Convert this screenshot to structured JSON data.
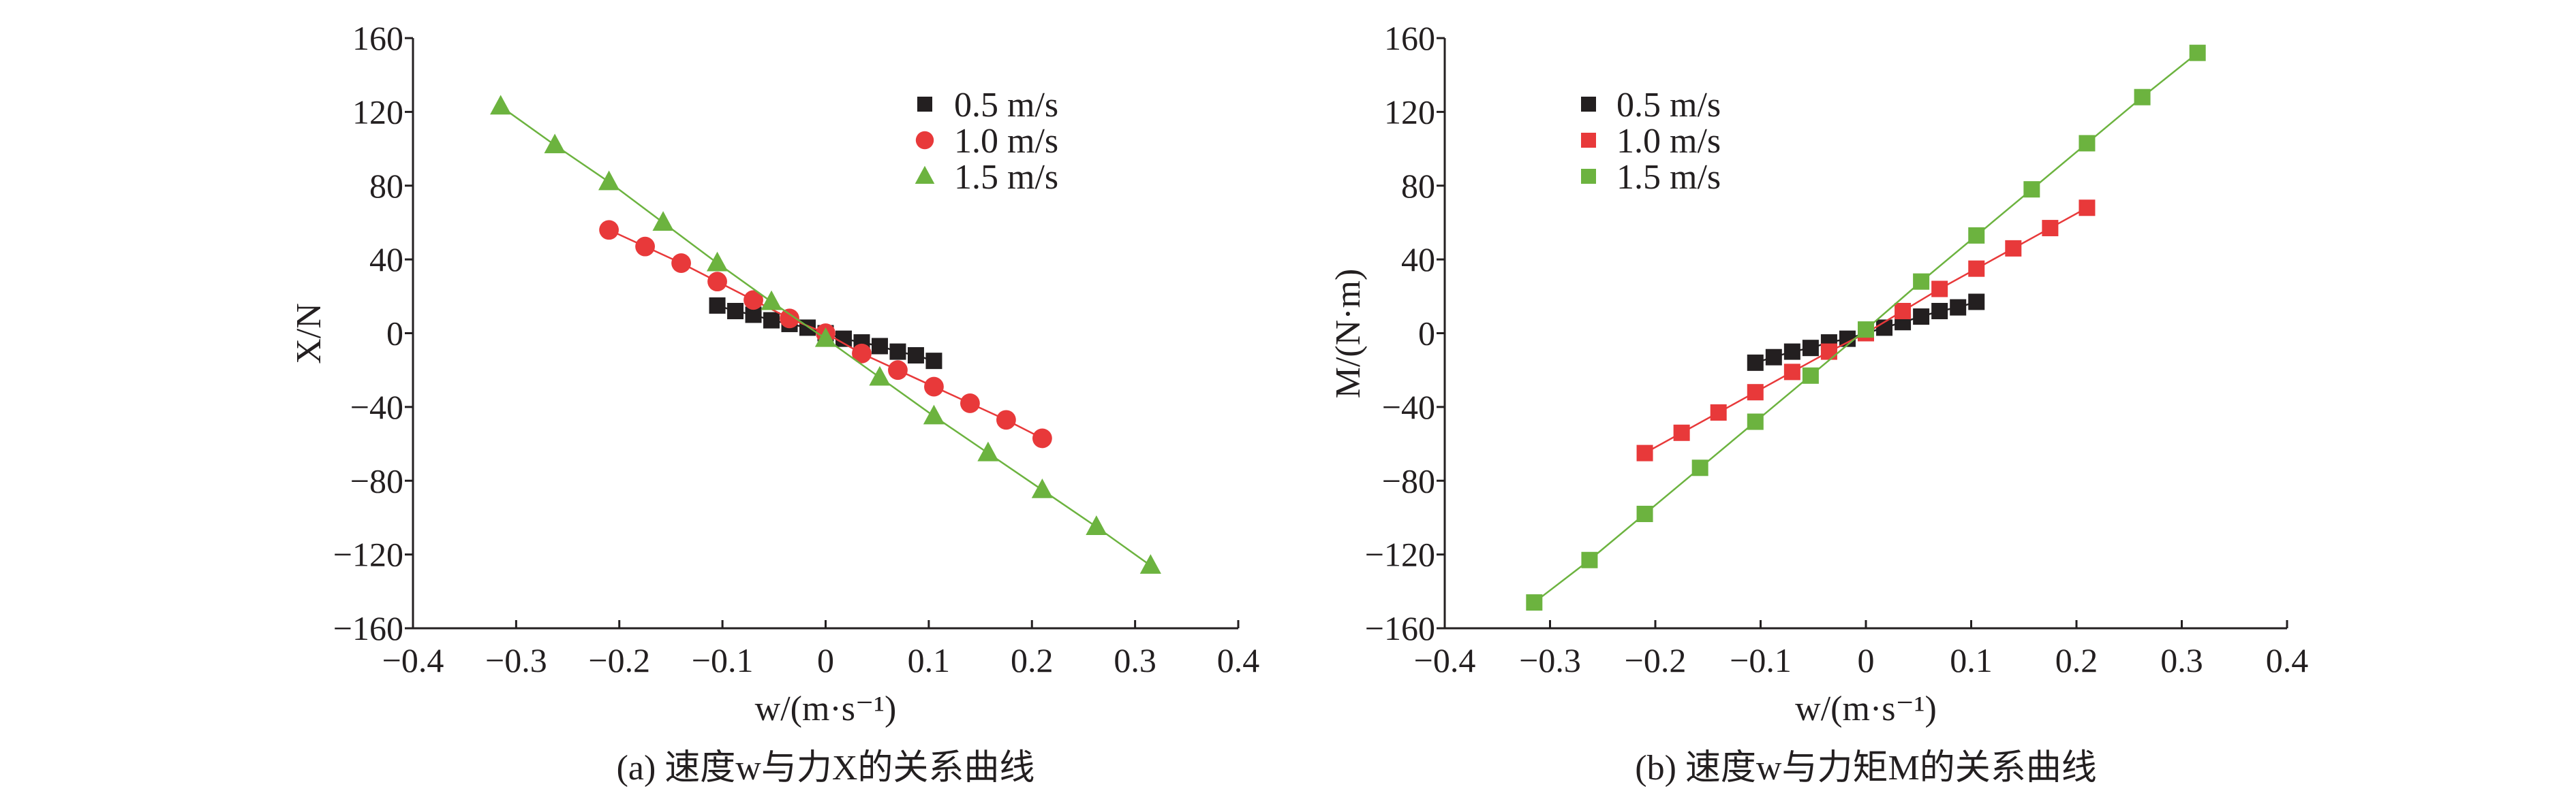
{
  "chart_data": [
    {
      "type": "line",
      "caption": "(a) 速度w与力X的关系曲线",
      "xlabel": "w/(m·s⁻¹)",
      "ylabel": "X/N",
      "xlim": [
        -0.4,
        0.4
      ],
      "ylim": [
        -160,
        160
      ],
      "xticks": [
        "−0.4",
        "−0.3",
        "−0.2",
        "−0.1",
        "0",
        "0.1",
        "0.2",
        "0.3",
        "0.4"
      ],
      "yticks": [
        "160",
        "120",
        "80",
        "40",
        "0",
        "−40",
        "−80",
        "−120",
        "−160"
      ],
      "legend_position": "top-right",
      "series": [
        {
          "name": "0.5 m/s",
          "color": "#231f20",
          "marker": "square",
          "x": [
            -0.105,
            -0.0875,
            -0.07,
            -0.0525,
            -0.035,
            -0.0175,
            0,
            0.0175,
            0.035,
            0.0525,
            0.07,
            0.0875,
            0.105
          ],
          "y": [
            15,
            12,
            10,
            7,
            5,
            3,
            0,
            -3,
            -5,
            -7,
            -10,
            -12,
            -15
          ]
        },
        {
          "name": "1.0 m/s",
          "color": "#e8393a",
          "marker": "circle",
          "x": [
            -0.21,
            -0.175,
            -0.14,
            -0.105,
            -0.07,
            -0.035,
            0,
            0.035,
            0.07,
            0.105,
            0.14,
            0.175,
            0.21
          ],
          "y": [
            56,
            47,
            38,
            28,
            18,
            8,
            0,
            -11,
            -20,
            -29,
            -38,
            -47,
            -57
          ]
        },
        {
          "name": "1.5 m/s",
          "color": "#6cb33f",
          "marker": "triangle",
          "x": [
            -0.315,
            -0.2625,
            -0.21,
            -0.1575,
            -0.105,
            -0.0525,
            0,
            0.0525,
            0.105,
            0.1575,
            0.21,
            0.2625,
            0.315
          ],
          "y": [
            123,
            102,
            82,
            60,
            38,
            17,
            -3,
            -24,
            -45,
            -65,
            -85,
            -105,
            -126
          ]
        }
      ]
    },
    {
      "type": "line",
      "caption": "(b) 速度w与力矩M的关系曲线",
      "xlabel": "w/(m·s⁻¹)",
      "ylabel": "M/(N·m)",
      "xlim": [
        -0.4,
        0.4
      ],
      "ylim": [
        -160,
        160
      ],
      "xticks": [
        "−0.4",
        "−0.3",
        "−0.2",
        "−0.1",
        "0",
        "0.1",
        "0.2",
        "0.3",
        "0.4"
      ],
      "yticks": [
        "160",
        "120",
        "80",
        "40",
        "0",
        "−40",
        "−80",
        "−120",
        "−160"
      ],
      "legend_position": "top-left",
      "series": [
        {
          "name": "0.5 m/s",
          "color": "#231f20",
          "marker": "square",
          "x": [
            -0.105,
            -0.0875,
            -0.07,
            -0.0525,
            -0.035,
            -0.0175,
            0,
            0.0175,
            0.035,
            0.0525,
            0.07,
            0.0875,
            0.105
          ],
          "y": [
            -16,
            -13,
            -10,
            -8,
            -5,
            -3,
            0,
            3,
            6,
            9,
            12,
            14,
            17
          ]
        },
        {
          "name": "1.0 m/s",
          "color": "#e8393a",
          "marker": "square",
          "x": [
            -0.21,
            -0.175,
            -0.14,
            -0.105,
            -0.07,
            -0.035,
            0,
            0.035,
            0.07,
            0.105,
            0.14,
            0.175,
            0.21
          ],
          "y": [
            -65,
            -54,
            -43,
            -32,
            -21,
            -10,
            0,
            12,
            24,
            35,
            46,
            57,
            68
          ]
        },
        {
          "name": "1.5 m/s",
          "color": "#6cb33f",
          "marker": "square",
          "x": [
            -0.315,
            -0.2625,
            -0.21,
            -0.1575,
            -0.105,
            -0.0525,
            0,
            0.0525,
            0.105,
            0.1575,
            0.21,
            0.2625,
            0.315
          ],
          "y": [
            -146,
            -123,
            -98,
            -73,
            -48,
            -23,
            2,
            28,
            53,
            78,
            103,
            128,
            152
          ]
        }
      ]
    }
  ]
}
